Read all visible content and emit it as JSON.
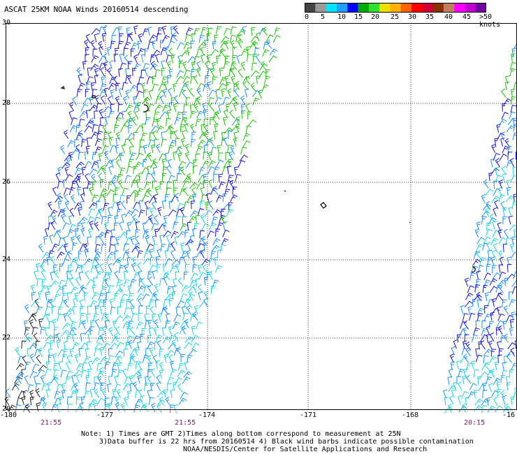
{
  "title": "ASCAT 25KM NOAA Winds 20160514 descending",
  "legend": {
    "labels": [
      "0",
      "5",
      "10",
      "15",
      "20",
      "25",
      "30",
      "35",
      "40",
      "45",
      ">50 knots"
    ],
    "colors": [
      "#444444",
      "#9a9a9a",
      "#00e5ff",
      "#1fa0ff",
      "#0000ff",
      "#0a0",
      "#2ee22e",
      "#f0e000",
      "#ffb000",
      "#ff6000",
      "#ff0000",
      "#d00030",
      "#8b3000",
      "#c08060",
      "#ff00ff",
      "#c000d0",
      "#7000a0"
    ]
  },
  "axes": {
    "lat_labels": [
      "30",
      "28",
      "26",
      "24",
      "22",
      "20"
    ],
    "lon_labels": [
      "-180",
      "-177",
      "-174",
      "-171",
      "-168",
      "-16"
    ]
  },
  "pass_times": [
    "21:55",
    "21:55",
    "20:15"
  ],
  "notes": {
    "line1": "Note: 1) Times are GMT 2)Times along bottom correspond to measurement at 25N",
    "line2": "3)Data buffer is 22 hrs from 20160514 4) Black wind barbs indicate possible contamination",
    "line3": "NOAA/NESDIS/Center for Satellite Applications and Research"
  },
  "barb_colors": {
    "black": "#222222",
    "cyan": "#22d0e8",
    "light_blue": "#1e90ff",
    "blue": "#1414d0",
    "green": "#22c010"
  }
}
